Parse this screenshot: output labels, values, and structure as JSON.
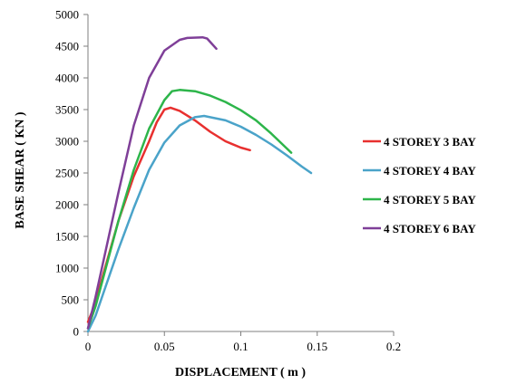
{
  "chart_data": {
    "type": "line",
    "xlabel": "DISPLACEMENT ( m )",
    "ylabel": "BASE SHEAR ( KN )",
    "xlim": [
      0,
      0.2
    ],
    "ylim": [
      0,
      5000
    ],
    "xticks": [
      "0",
      "0.05",
      "0.1",
      "0.15",
      "0.2"
    ],
    "xtick_values": [
      0,
      0.05,
      0.1,
      0.15,
      0.2
    ],
    "yticks": [
      "0",
      "500",
      "1000",
      "1500",
      "2000",
      "2500",
      "3000",
      "3500",
      "4000",
      "4500",
      "5000"
    ],
    "ytick_values": [
      0,
      500,
      1000,
      1500,
      2000,
      2500,
      3000,
      3500,
      4000,
      4500,
      5000
    ],
    "grid": false,
    "legend_position": "right",
    "series": [
      {
        "name": "4 STOREY 3 BAY",
        "color": "#e8302f",
        "points": [
          [
            0,
            150
          ],
          [
            0.005,
            450
          ],
          [
            0.01,
            900
          ],
          [
            0.02,
            1750
          ],
          [
            0.03,
            2450
          ],
          [
            0.04,
            3000
          ],
          [
            0.045,
            3300
          ],
          [
            0.05,
            3500
          ],
          [
            0.054,
            3530
          ],
          [
            0.06,
            3480
          ],
          [
            0.07,
            3330
          ],
          [
            0.08,
            3150
          ],
          [
            0.09,
            3000
          ],
          [
            0.1,
            2900
          ],
          [
            0.106,
            2860
          ]
        ]
      },
      {
        "name": "4 STOREY 4 BAY",
        "color": "#4aa3c9",
        "points": [
          [
            0,
            0
          ],
          [
            0.005,
            250
          ],
          [
            0.01,
            600
          ],
          [
            0.02,
            1300
          ],
          [
            0.03,
            1950
          ],
          [
            0.04,
            2550
          ],
          [
            0.05,
            2980
          ],
          [
            0.06,
            3250
          ],
          [
            0.07,
            3380
          ],
          [
            0.076,
            3400
          ],
          [
            0.09,
            3330
          ],
          [
            0.1,
            3230
          ],
          [
            0.11,
            3100
          ],
          [
            0.12,
            2950
          ],
          [
            0.13,
            2780
          ],
          [
            0.14,
            2600
          ],
          [
            0.146,
            2500
          ]
        ]
      },
      {
        "name": "4 STOREY 5 BAY",
        "color": "#2db54a",
        "points": [
          [
            0,
            50
          ],
          [
            0.005,
            400
          ],
          [
            0.01,
            850
          ],
          [
            0.02,
            1750
          ],
          [
            0.03,
            2550
          ],
          [
            0.04,
            3200
          ],
          [
            0.05,
            3650
          ],
          [
            0.055,
            3790
          ],
          [
            0.06,
            3810
          ],
          [
            0.07,
            3790
          ],
          [
            0.08,
            3720
          ],
          [
            0.09,
            3620
          ],
          [
            0.1,
            3490
          ],
          [
            0.11,
            3330
          ],
          [
            0.12,
            3120
          ],
          [
            0.133,
            2820
          ]
        ]
      },
      {
        "name": "4 STOREY 6 BAY",
        "color": "#7f3f98",
        "points": [
          [
            0,
            50
          ],
          [
            0.005,
            550
          ],
          [
            0.01,
            1100
          ],
          [
            0.02,
            2200
          ],
          [
            0.03,
            3250
          ],
          [
            0.04,
            4000
          ],
          [
            0.05,
            4430
          ],
          [
            0.06,
            4600
          ],
          [
            0.065,
            4630
          ],
          [
            0.075,
            4640
          ],
          [
            0.078,
            4620
          ],
          [
            0.084,
            4460
          ]
        ]
      }
    ]
  }
}
